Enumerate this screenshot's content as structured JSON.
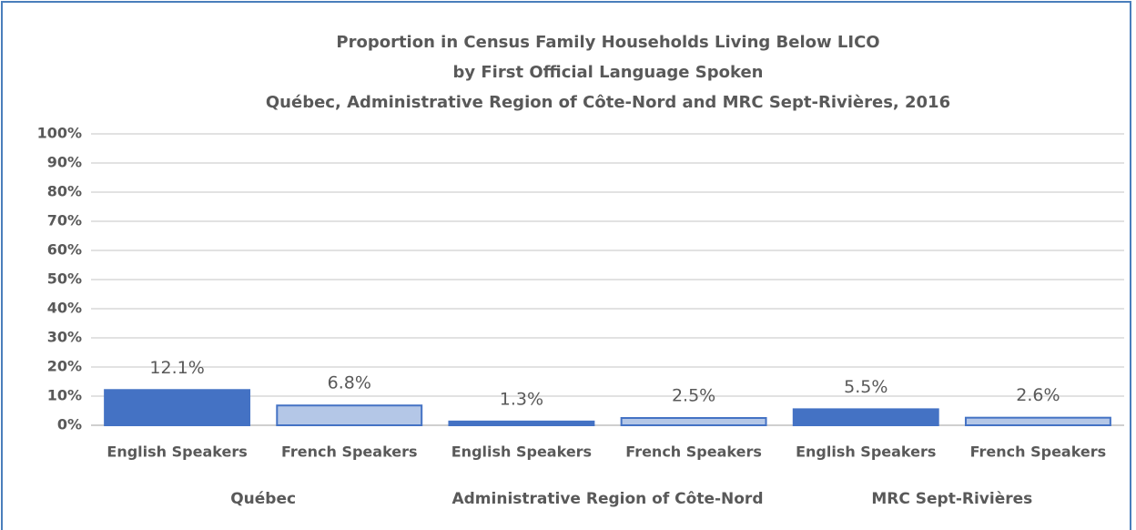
{
  "chart_data": {
    "type": "bar",
    "title": [
      "Proportion in Census Family Households Living Below LICO",
      "by First Official Language Spoken",
      "Québec, Administrative Region of Côte-Nord and MRC Sept-Rivières, 2016"
    ],
    "categories": [
      "English Speakers",
      "French Speakers",
      "English Speakers",
      "French Speakers",
      "English Speakers",
      "French Speakers"
    ],
    "groups": [
      "Québec",
      "Administrative Region of Côte-Nord",
      "MRC Sept-Rivières"
    ],
    "values": [
      12.1,
      6.8,
      1.3,
      2.5,
      5.5,
      2.6
    ],
    "value_labels": [
      "12.1%",
      "6.8%",
      "1.3%",
      "2.5%",
      "5.5%",
      "2.6%"
    ],
    "colors": [
      "#4472c4",
      "#b4c7e7",
      "#4472c4",
      "#b4c7e7",
      "#4472c4",
      "#b4c7e7"
    ],
    "edgecolor": "#4472c4",
    "ylim": [
      0,
      100
    ],
    "yticks": [
      {
        "value": 0,
        "label": "0%"
      },
      {
        "value": 10,
        "label": "10%"
      },
      {
        "value": 20,
        "label": "20%"
      },
      {
        "value": 30,
        "label": "30%"
      },
      {
        "value": 40,
        "label": "40%"
      },
      {
        "value": 50,
        "label": "50%"
      },
      {
        "value": 60,
        "label": "60%"
      },
      {
        "value": 70,
        "label": "70%"
      },
      {
        "value": 80,
        "label": "80%"
      },
      {
        "value": 90,
        "label": "90%"
      },
      {
        "value": 100,
        "label": "100%"
      }
    ],
    "grid": true
  }
}
